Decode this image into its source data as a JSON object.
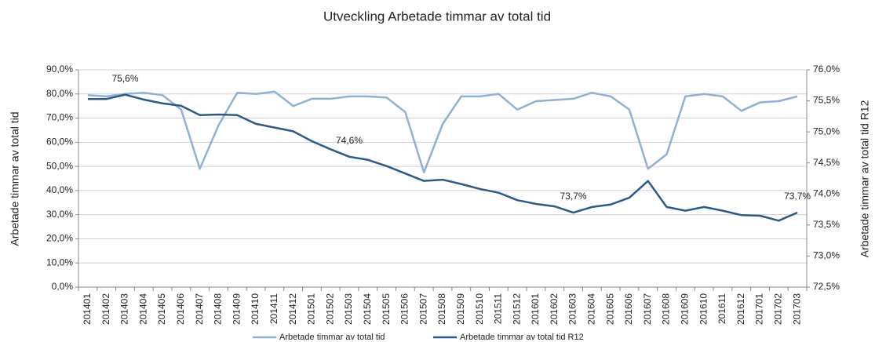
{
  "chart_data": {
    "type": "line",
    "title": "Utveckling Arbetade timmar av total tid",
    "y_label": "Arbetade timmar av total tid",
    "y2_label": "Arbetade timmar av total tid R12",
    "categories": [
      "201401",
      "201402",
      "201403",
      "201404",
      "201405",
      "201406",
      "201407",
      "201408",
      "201409",
      "201410",
      "201411",
      "201412",
      "201501",
      "201502",
      "201503",
      "201504",
      "201505",
      "201506",
      "201507",
      "201508",
      "201509",
      "201510",
      "201511",
      "201512",
      "201601",
      "201602",
      "201603",
      "201604",
      "201605",
      "201606",
      "201607",
      "201608",
      "201609",
      "201610",
      "201611",
      "201612",
      "201701",
      "201702",
      "201703"
    ],
    "series": [
      {
        "name": "Arbetade timmar av total tid",
        "color": "#8fb0d8",
        "values": [
          79.5,
          79,
          80,
          80.5,
          79.5,
          73.5,
          49,
          67,
          80.5,
          80,
          81,
          75,
          78,
          78,
          79,
          79,
          78.5,
          72.5,
          47.5,
          67.5,
          79,
          79,
          80,
          73.5,
          77,
          77.5,
          78,
          80.5,
          79,
          73.5,
          49,
          55,
          79,
          80,
          79,
          73,
          76.5,
          77,
          79
        ]
      },
      {
        "name": "Arbetade timmar av total tid R12",
        "color": "#2a5a8c",
        "axis": "y2",
        "values": [
          75.53,
          75.53,
          75.6,
          75.52,
          75.46,
          75.42,
          75.27,
          75.28,
          75.27,
          75.13,
          75.07,
          75.01,
          74.85,
          74.72,
          74.6,
          74.55,
          74.45,
          74.33,
          74.21,
          74.23,
          74.16,
          74.08,
          74.02,
          73.9,
          73.84,
          73.8,
          73.7,
          73.79,
          73.83,
          73.94,
          74.21,
          73.79,
          73.73,
          73.79,
          73.73,
          73.66,
          73.65,
          73.57,
          73.7
        ],
        "value_labels": [
          null,
          null,
          "75,6%",
          null,
          null,
          null,
          null,
          null,
          null,
          null,
          null,
          null,
          null,
          null,
          "74,6%",
          null,
          null,
          null,
          null,
          null,
          null,
          null,
          null,
          null,
          null,
          null,
          "73,7%",
          null,
          null,
          null,
          null,
          null,
          null,
          null,
          null,
          null,
          null,
          null,
          "73,7%"
        ]
      }
    ],
    "ylim": [
      0,
      90
    ],
    "yticks": [
      {
        "value": 0,
        "label": "0,0%"
      },
      {
        "value": 10,
        "label": "10,0%"
      },
      {
        "value": 20,
        "label": "20,0%"
      },
      {
        "value": 30,
        "label": "30,0%"
      },
      {
        "value": 40,
        "label": "40,0%"
      },
      {
        "value": 50,
        "label": "50,0%"
      },
      {
        "value": 60,
        "label": "60,0%"
      },
      {
        "value": 70,
        "label": "70,0%"
      },
      {
        "value": 80,
        "label": "80,0%"
      },
      {
        "value": 90,
        "label": "90,0%"
      }
    ],
    "y2lim": [
      72.5,
      76.0
    ],
    "y2ticks": [
      {
        "value": 72.5,
        "label": "72,5%"
      },
      {
        "value": 73.0,
        "label": "73,0%"
      },
      {
        "value": 73.5,
        "label": "73,5%"
      },
      {
        "value": 74.0,
        "label": "74,0%"
      },
      {
        "value": 74.5,
        "label": "74,5%"
      },
      {
        "value": 75.0,
        "label": "75,0%"
      },
      {
        "value": 75.5,
        "label": "75,5%"
      },
      {
        "value": 76.0,
        "label": "76,0%"
      }
    ],
    "grid": true,
    "legend": "bottom"
  }
}
